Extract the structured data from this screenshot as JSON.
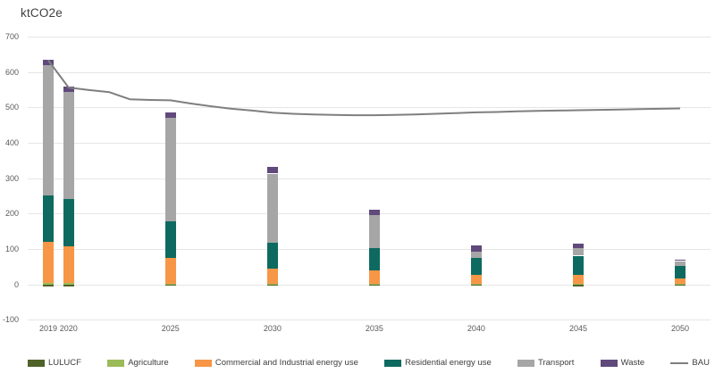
{
  "chart_data": {
    "type": "bar",
    "variant": "stacked-column-with-line",
    "title": "ktCO2e",
    "ylabel": "ktCO2e",
    "ylim": [
      -100,
      700
    ],
    "ytick_step": 100,
    "grid": true,
    "legend_position": "bottom",
    "categories": [
      "2019",
      "2020",
      "2025",
      "2030",
      "2035",
      "2040",
      "2045",
      "2050"
    ],
    "series": [
      {
        "name": "LULUCF",
        "color": "#4F6228",
        "values": [
          -5,
          -5,
          -4,
          -4,
          -4,
          -4,
          -5,
          -4
        ]
      },
      {
        "name": "Agriculture",
        "color": "#9BBB59",
        "values": [
          3,
          3,
          2,
          2,
          2,
          2,
          2,
          2
        ]
      },
      {
        "name": "Commercial and Industrial energy use",
        "color": "#F79646",
        "values": [
          118,
          105,
          73,
          43,
          37,
          24,
          26,
          15
        ]
      },
      {
        "name": "Residential energy use",
        "color": "#0E6A60",
        "values": [
          130,
          134,
          103,
          72,
          63,
          48,
          53,
          36
        ]
      },
      {
        "name": "Transport",
        "color": "#A6A6A6",
        "values": [
          368,
          302,
          292,
          196,
          94,
          19,
          22,
          13
        ]
      },
      {
        "name": "Waste",
        "color": "#60497B",
        "values": [
          15,
          14,
          17,
          20,
          14,
          16,
          11,
          3
        ]
      }
    ],
    "line_series": {
      "name": "BAU",
      "color": "#7F7F7F",
      "years": [
        2019,
        2020,
        2021,
        2022,
        2023,
        2024,
        2025,
        2026,
        2027,
        2028,
        2029,
        2030,
        2031,
        2032,
        2033,
        2034,
        2035,
        2036,
        2037,
        2038,
        2039,
        2040,
        2041,
        2042,
        2043,
        2044,
        2045,
        2046,
        2047,
        2048,
        2049,
        2050
      ],
      "values": [
        633,
        556,
        549,
        543,
        523,
        521,
        520,
        511,
        503,
        496,
        491,
        485,
        482,
        480,
        479,
        478,
        478,
        479,
        480,
        482,
        484,
        486,
        487,
        489,
        490,
        491,
        492,
        493,
        494,
        495,
        496,
        497
      ]
    }
  },
  "axes": {
    "y_ticks": [
      "700",
      "600",
      "500",
      "400",
      "300",
      "200",
      "100",
      "0",
      "-100"
    ],
    "x_ticks": [
      "2019",
      "2020",
      "2025",
      "2030",
      "2035",
      "2040",
      "2045",
      "2050"
    ]
  },
  "styles": {
    "grid_color": "#E6E6E6",
    "axis_text_color": "#595959",
    "title_color": "#3F3F3F",
    "background": "#FFFFFF",
    "bau_line_color": "#7F7F7F"
  }
}
